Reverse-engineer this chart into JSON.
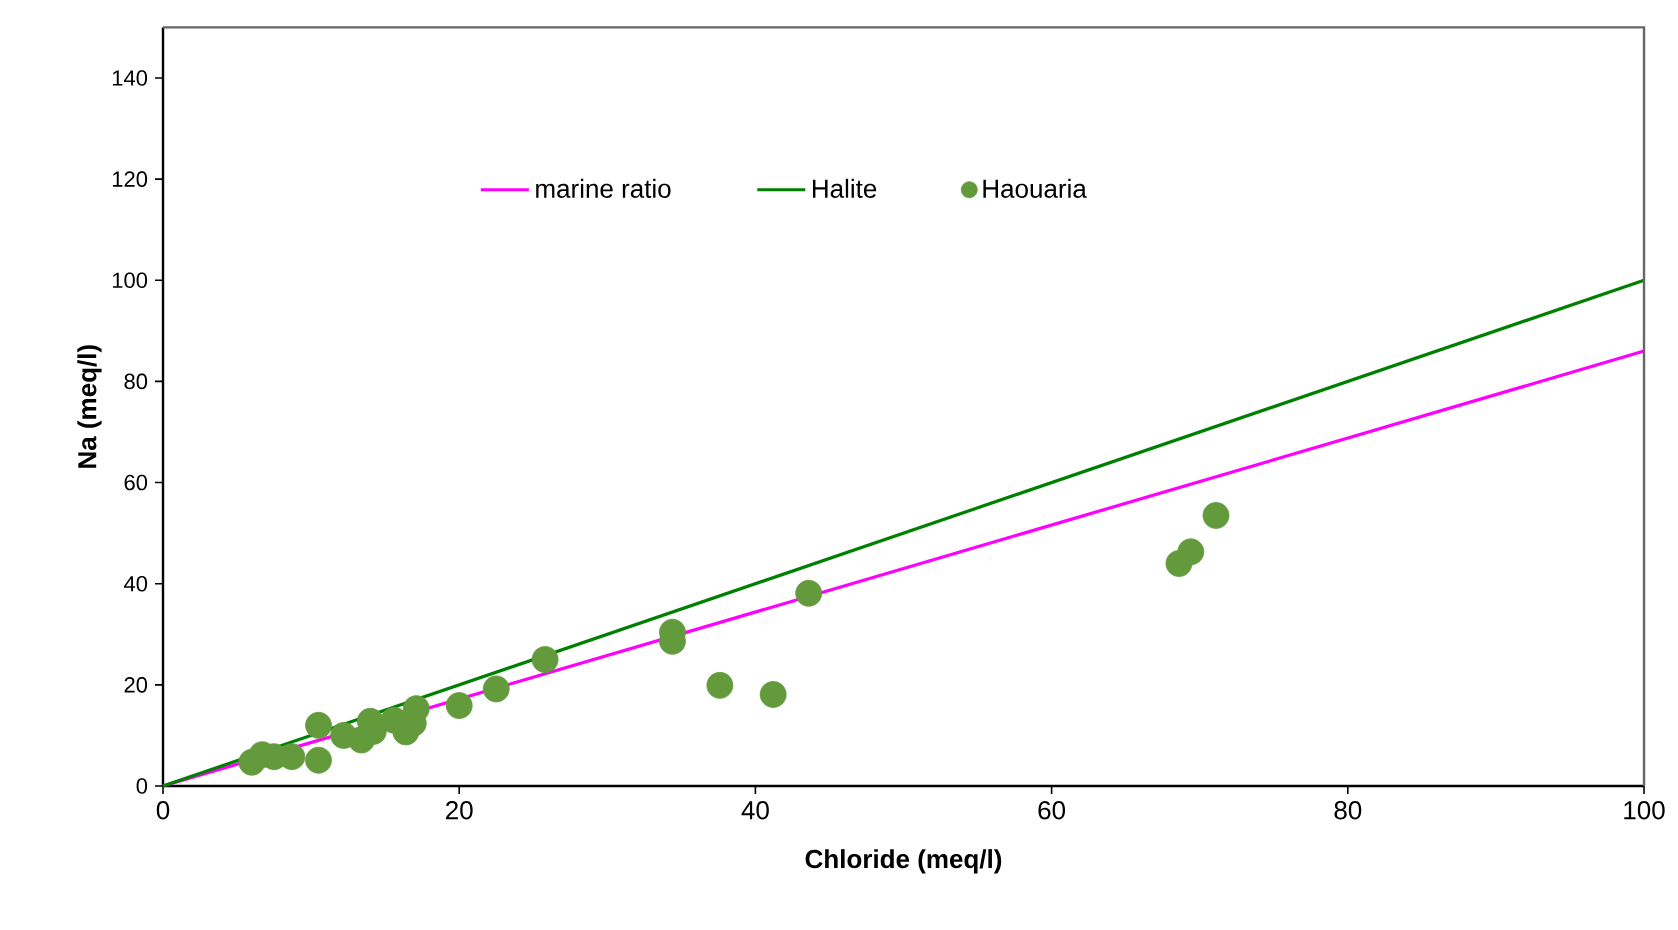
{
  "chart_data": {
    "type": "scatter",
    "xlabel": "Chloride (meq/l)",
    "ylabel": "Na (meq/l)",
    "xlim": [
      0,
      100
    ],
    "ylim": [
      0,
      150
    ],
    "xticks": [
      0,
      20,
      40,
      60,
      80,
      100
    ],
    "yticks": [
      0,
      20,
      40,
      60,
      80,
      100,
      120,
      140
    ],
    "grid": false,
    "legend": "top",
    "series": [
      {
        "name": "marine ratio",
        "type": "line",
        "color": "#ff00ff",
        "line_style": "solid",
        "marker": "none",
        "x": [
          0,
          100
        ],
        "values": [
          0,
          86
        ]
      },
      {
        "name": "Halite",
        "type": "line",
        "color": "#008000",
        "line_style": "solid",
        "marker": "none",
        "x": [
          0,
          100
        ],
        "values": [
          0,
          100
        ]
      },
      {
        "name": "Haouaria",
        "color": "#629a3c",
        "marker": "circle",
        "x": [
          6.0,
          6.7,
          7.5,
          8.7,
          10.5,
          10.5,
          12.2,
          13.4,
          14.0,
          14.2,
          15.6,
          16.4,
          16.9,
          17.1,
          20.0,
          22.5,
          25.8,
          34.4,
          34.4,
          37.6,
          41.2,
          43.6,
          68.6,
          69.4,
          71.1
        ],
        "values": [
          4.7,
          6.2,
          5.8,
          5.8,
          5.1,
          12.0,
          10.0,
          9.1,
          12.8,
          10.8,
          13.0,
          10.7,
          12.4,
          15.3,
          15.9,
          19.2,
          25.0,
          30.4,
          28.6,
          19.9,
          18.1,
          38.1,
          44.0,
          46.3,
          53.5
        ]
      }
    ]
  }
}
